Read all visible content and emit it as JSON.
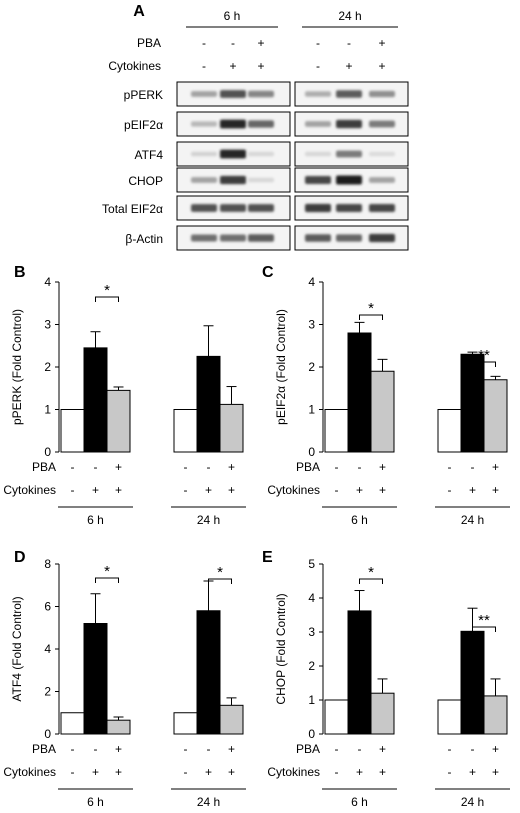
{
  "figure": {
    "panel_a": {
      "letter": "A",
      "time_labels": [
        "6 h",
        "24 h"
      ],
      "conditions": [
        {
          "label": "PBA",
          "marks": [
            "-",
            "-",
            "+",
            "-",
            "-",
            "+"
          ]
        },
        {
          "label": "Cytokines",
          "marks": [
            "-",
            "+",
            "+",
            "-",
            "+",
            "+"
          ]
        }
      ],
      "blot_labels": [
        "pPERK",
        "pEIF2α",
        "ATF4",
        "CHOP",
        "Total EIF2α",
        "β-Actin"
      ],
      "band_intensity": [
        [
          0.35,
          0.75,
          0.5,
          0.3,
          0.7,
          0.45
        ],
        [
          0.25,
          0.95,
          0.65,
          0.35,
          0.85,
          0.55
        ],
        [
          0.12,
          0.95,
          0.1,
          0.1,
          0.55,
          0.08
        ],
        [
          0.35,
          0.85,
          0.1,
          0.8,
          1.0,
          0.35
        ],
        [
          0.75,
          0.75,
          0.75,
          0.85,
          0.8,
          0.8
        ],
        [
          0.6,
          0.6,
          0.7,
          0.7,
          0.65,
          0.85
        ]
      ]
    }
  },
  "chart_data": [
    {
      "type": "bar",
      "letter": "B",
      "ylabel": "pPERK (Fold Control)",
      "ylim": [
        0,
        4
      ],
      "yticks": [
        "0",
        "1",
        "2",
        "3",
        "4"
      ],
      "categories": [
        "-/-",
        "-/+",
        "+/+",
        "-/-",
        "-/+",
        "+/+"
      ],
      "series": [
        {
          "values": [
            1.0,
            2.45,
            1.45,
            1.0,
            2.25,
            1.12
          ],
          "errors": [
            0,
            0.38,
            0.08,
            0,
            0.72,
            0.42
          ]
        }
      ],
      "bar_colors": [
        "#ffffff",
        "#000000",
        "#c8c8c8",
        "#ffffff",
        "#000000",
        "#c8c8c8"
      ],
      "significance": [
        {
          "group": "6 h",
          "label": "*"
        }
      ],
      "conditions": [
        {
          "label": "PBA",
          "marks": [
            "-",
            "-",
            "+",
            "-",
            "-",
            "+"
          ]
        },
        {
          "label": "Cytokines",
          "marks": [
            "-",
            "+",
            "+",
            "-",
            "+",
            "+"
          ]
        }
      ],
      "groups": [
        "6 h",
        "24 h"
      ]
    },
    {
      "type": "bar",
      "letter": "C",
      "ylabel": "pEIF2α (Fold Control)",
      "ylim": [
        0,
        4
      ],
      "yticks": [
        "0",
        "1",
        "2",
        "3",
        "4"
      ],
      "categories": [
        "-/-",
        "-/+",
        "+/+",
        "-/-",
        "-/+",
        "+/+"
      ],
      "series": [
        {
          "values": [
            1.0,
            2.8,
            1.9,
            1.0,
            2.3,
            1.7
          ],
          "errors": [
            0,
            0.25,
            0.28,
            0,
            0.05,
            0.08
          ]
        }
      ],
      "bar_colors": [
        "#ffffff",
        "#000000",
        "#c8c8c8",
        "#ffffff",
        "#000000",
        "#c8c8c8"
      ],
      "significance": [
        {
          "group": "6 h",
          "label": "*"
        },
        {
          "group": "24 h",
          "label": "**"
        }
      ],
      "conditions": [
        {
          "label": "PBA",
          "marks": [
            "-",
            "-",
            "+",
            "-",
            "-",
            "+"
          ]
        },
        {
          "label": "Cytokines",
          "marks": [
            "-",
            "+",
            "+",
            "-",
            "+",
            "+"
          ]
        }
      ],
      "groups": [
        "6 h",
        "24 h"
      ]
    },
    {
      "type": "bar",
      "letter": "D",
      "ylabel": "ATF4 (Fold Control)",
      "ylim": [
        0,
        8
      ],
      "yticks": [
        "0",
        "2",
        "4",
        "6",
        "8"
      ],
      "categories": [
        "-/-",
        "-/+",
        "+/+",
        "-/-",
        "-/+",
        "+/+"
      ],
      "series": [
        {
          "values": [
            1.0,
            5.2,
            0.65,
            1.0,
            5.8,
            1.35
          ],
          "errors": [
            0,
            1.4,
            0.15,
            0,
            1.4,
            0.35
          ]
        }
      ],
      "bar_colors": [
        "#ffffff",
        "#000000",
        "#c8c8c8",
        "#ffffff",
        "#000000",
        "#c8c8c8"
      ],
      "significance": [
        {
          "group": "6 h",
          "label": "*"
        },
        {
          "group": "24 h",
          "label": "*"
        }
      ],
      "conditions": [
        {
          "label": "PBA",
          "marks": [
            "-",
            "-",
            "+",
            "-",
            "-",
            "+"
          ]
        },
        {
          "label": "Cytokines",
          "marks": [
            "-",
            "+",
            "+",
            "-",
            "+",
            "+"
          ]
        }
      ],
      "groups": [
        "6 h",
        "24 h"
      ]
    },
    {
      "type": "bar",
      "letter": "E",
      "ylabel": "CHOP (Fold Control)",
      "ylim": [
        0,
        5
      ],
      "yticks": [
        "0",
        "1",
        "2",
        "3",
        "4",
        "5"
      ],
      "categories": [
        "-/-",
        "-/+",
        "+/+",
        "-/-",
        "-/+",
        "+/+"
      ],
      "series": [
        {
          "values": [
            1.0,
            3.62,
            1.2,
            1.0,
            3.02,
            1.12
          ],
          "errors": [
            0,
            0.6,
            0.42,
            0,
            0.68,
            0.5
          ]
        }
      ],
      "bar_colors": [
        "#ffffff",
        "#000000",
        "#c8c8c8",
        "#ffffff",
        "#000000",
        "#c8c8c8"
      ],
      "significance": [
        {
          "group": "6 h",
          "label": "*"
        },
        {
          "group": "24 h",
          "label": "**"
        }
      ],
      "conditions": [
        {
          "label": "PBA",
          "marks": [
            "-",
            "-",
            "+",
            "-",
            "-",
            "+"
          ]
        },
        {
          "label": "Cytokines",
          "marks": [
            "-",
            "+",
            "+",
            "-",
            "+",
            "+"
          ]
        }
      ],
      "groups": [
        "6 h",
        "24 h"
      ]
    }
  ]
}
